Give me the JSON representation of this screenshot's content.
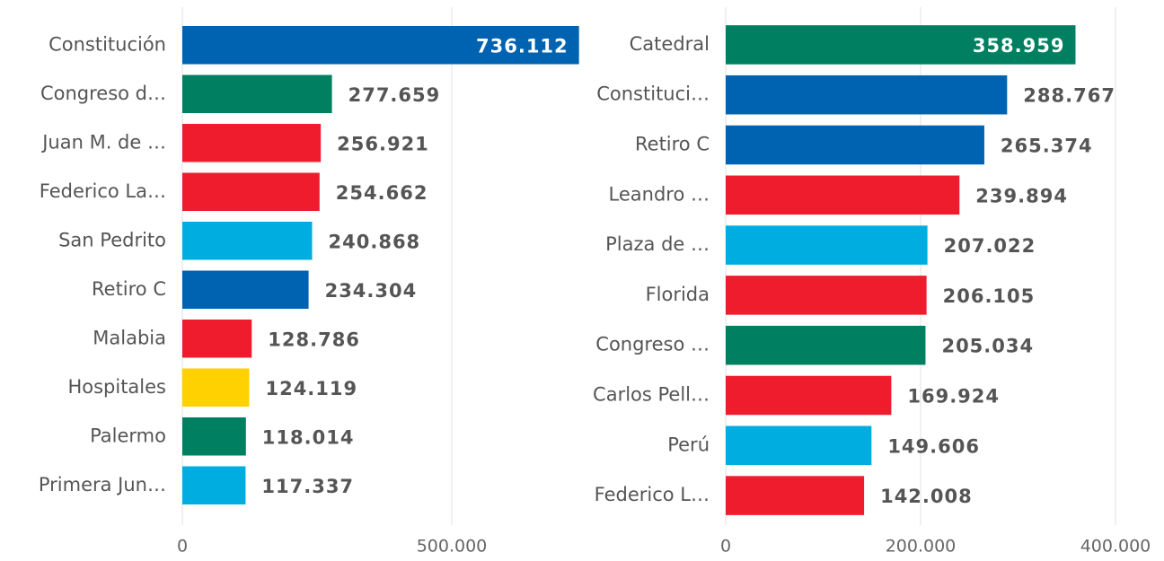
{
  "chart_data": [
    {
      "type": "bar",
      "orientation": "horizontal",
      "categories": [
        "Constitución",
        "Congreso d…",
        "Juan M. de …",
        "Federico La…",
        "San Pedrito",
        "Retiro C",
        "Malabia",
        "Hospitales",
        "Palermo",
        "Primera Jun…"
      ],
      "values": [
        736112,
        277659,
        256921,
        254662,
        240868,
        234304,
        128786,
        124119,
        118014,
        117337
      ],
      "value_labels": [
        "736.112",
        "277.659",
        "256.921",
        "254.662",
        "240.868",
        "234.304",
        "128.786",
        "124.119",
        "118.014",
        "117.337"
      ],
      "colors": [
        "#0063b1",
        "#008060",
        "#ef1c2e",
        "#ef1c2e",
        "#00ade1",
        "#0063b1",
        "#ef1c2e",
        "#ffd100",
        "#008060",
        "#00ade1"
      ],
      "xlim": [
        0,
        750000
      ],
      "xticks": [
        0,
        {
          "value": 500000,
          "label": "500.000"
        }
      ],
      "grid": true
    },
    {
      "type": "bar",
      "orientation": "horizontal",
      "categories": [
        "Catedral",
        "Constituci…",
        "Retiro C",
        "Leandro …",
        "Plaza de …",
        "Florida",
        "Congreso …",
        "Carlos Pell…",
        "Perú",
        "Federico L…"
      ],
      "values": [
        358959,
        288767,
        265374,
        239894,
        207022,
        206105,
        205034,
        169924,
        149606,
        142008
      ],
      "value_labels": [
        "358.959",
        "288.767",
        "265.374",
        "239.894",
        "207.022",
        "206.105",
        "205.034",
        "169.924",
        "149.606",
        "142.008"
      ],
      "colors": [
        "#008060",
        "#0063b1",
        "#0063b1",
        "#ef1c2e",
        "#00ade1",
        "#ef1c2e",
        "#008060",
        "#ef1c2e",
        "#00ade1",
        "#ef1c2e"
      ],
      "xlim": [
        0,
        400000
      ],
      "xticks": [
        0,
        {
          "value": 200000,
          "label": "200.000"
        },
        {
          "value": 400000,
          "label": "400.000"
        }
      ],
      "grid": true
    }
  ]
}
